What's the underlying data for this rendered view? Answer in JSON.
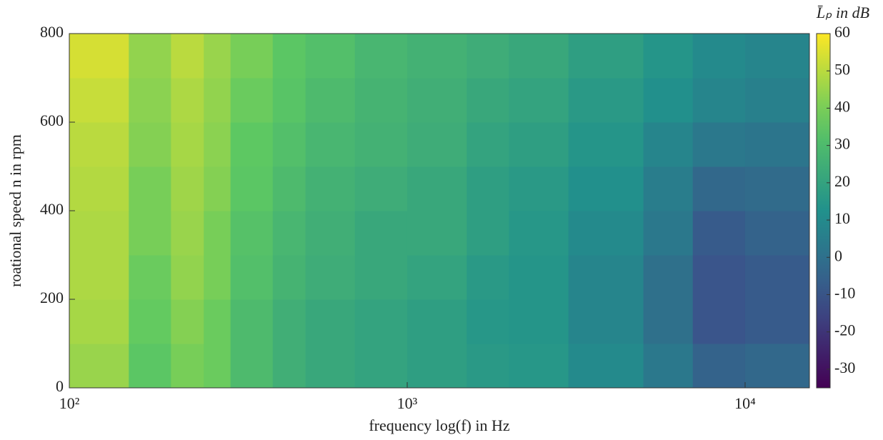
{
  "chart_data": {
    "type": "heatmap",
    "xlabel": "frequency log(f) in Hz",
    "ylabel": "roational speed n in rpm",
    "colorbar_label": "L̄ₚ in dB",
    "log_x": true,
    "xlim": [
      100,
      15500
    ],
    "xticks": [
      {
        "value": 100,
        "label": "10²"
      },
      {
        "value": 1000,
        "label": "10³"
      },
      {
        "value": 10000,
        "label": "10⁴"
      }
    ],
    "ylim": [
      0,
      800
    ],
    "yticks": [
      0,
      200,
      400,
      600,
      800
    ],
    "clim": [
      -35,
      60
    ],
    "cticks": [
      60,
      50,
      40,
      30,
      20,
      10,
      0,
      -10,
      -20,
      -30
    ],
    "colormap": "viridis",
    "x": [
      100,
      150,
      200,
      250,
      300,
      400,
      500,
      700,
      1000,
      1500,
      2000,
      3000,
      5000,
      7000,
      10000,
      15500
    ],
    "y": [
      0,
      100,
      200,
      300,
      400,
      500,
      600,
      700,
      800
    ],
    "values": [
      [
        45,
        35,
        40,
        38,
        30,
        25,
        22,
        20,
        18,
        16,
        15,
        10,
        3,
        -5,
        -3
      ],
      [
        47,
        37,
        42,
        38,
        30,
        25,
        22,
        20,
        18,
        15,
        14,
        8,
        0,
        -10,
        -8
      ],
      [
        48,
        38,
        44,
        40,
        32,
        27,
        24,
        22,
        20,
        16,
        14,
        8,
        0,
        -10,
        -8
      ],
      [
        48,
        40,
        45,
        40,
        33,
        28,
        25,
        22,
        22,
        18,
        15,
        10,
        3,
        -8,
        -5
      ],
      [
        49,
        40,
        46,
        42,
        35,
        30,
        26,
        24,
        22,
        18,
        16,
        12,
        5,
        -3,
        -2
      ],
      [
        50,
        42,
        47,
        43,
        36,
        32,
        28,
        26,
        24,
        20,
        18,
        14,
        8,
        3,
        2
      ],
      [
        52,
        43,
        48,
        44,
        38,
        34,
        30,
        27,
        25,
        22,
        20,
        16,
        12,
        8,
        6
      ],
      [
        54,
        44,
        50,
        45,
        40,
        35,
        32,
        28,
        26,
        24,
        22,
        18,
        14,
        10,
        8
      ]
    ]
  }
}
